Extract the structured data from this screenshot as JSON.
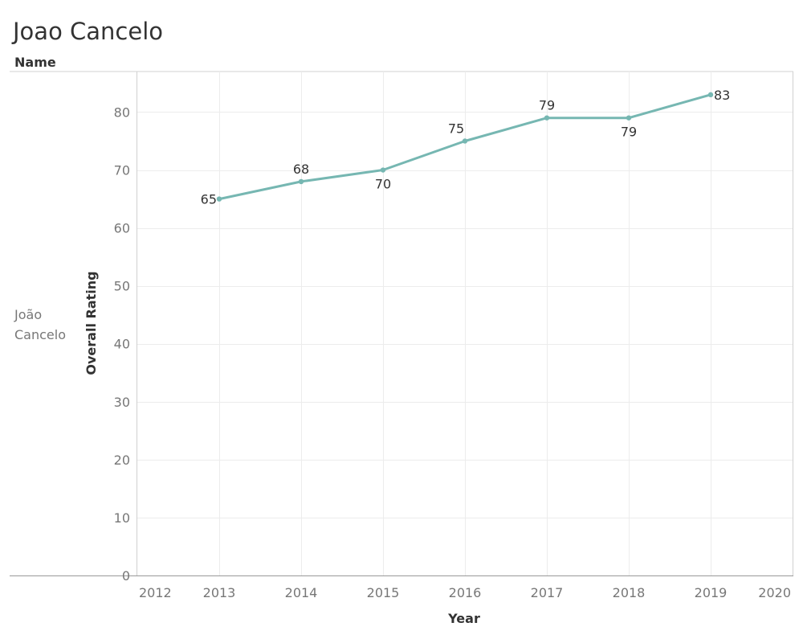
{
  "title": "Joao Cancelo",
  "header": {
    "name_label": "Name"
  },
  "row": {
    "name_line1": "João",
    "name_line2": "Cancelo"
  },
  "chart_data": {
    "type": "line",
    "x": [
      2013,
      2014,
      2015,
      2016,
      2017,
      2018,
      2019
    ],
    "series": [
      {
        "values": [
          65,
          68,
          70,
          75,
          79,
          79,
          83
        ],
        "color": "#76b7b2"
      }
    ],
    "data_labels": [
      "65",
      "68",
      "70",
      "75",
      "79",
      "79",
      "83"
    ],
    "xlabel": "Year",
    "ylabel": "Overall Rating",
    "xlim": [
      2012,
      2020
    ],
    "ylim": [
      0,
      87
    ],
    "xticks": [
      2012,
      2013,
      2014,
      2015,
      2016,
      2017,
      2018,
      2019,
      2020
    ],
    "yticks": [
      0,
      10,
      20,
      30,
      40,
      50,
      60,
      70,
      80
    ],
    "grid": true,
    "legend": "none"
  }
}
